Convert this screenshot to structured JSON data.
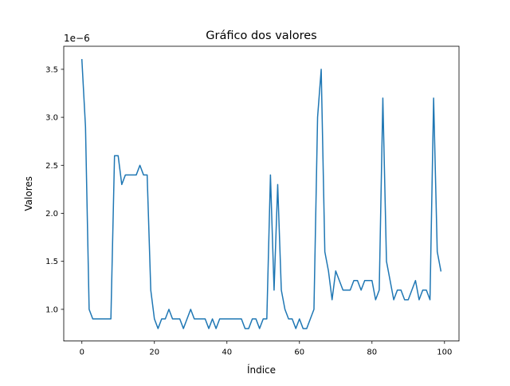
{
  "chart_data": {
    "type": "line",
    "title": "Gráfico dos valores",
    "xlabel": "Índice",
    "ylabel": "Valores",
    "y_offset_label": "1e−6",
    "xlim": [
      -5,
      104
    ],
    "ylim": [
      6.7e-07,
      3.74e-06
    ],
    "x_ticks": [
      0,
      20,
      40,
      60,
      80,
      100
    ],
    "y_ticks": [
      1e-06,
      1.5e-06,
      2e-06,
      2.5e-06,
      3e-06,
      3.5e-06
    ],
    "x_tick_labels": [
      "0",
      "20",
      "40",
      "60",
      "80",
      "100"
    ],
    "y_tick_labels": [
      "1.0",
      "1.5",
      "2.0",
      "2.5",
      "3.0",
      "3.5"
    ],
    "grid": false,
    "series": [
      {
        "color": "#1f77b4",
        "x": [
          0,
          1,
          2,
          3,
          4,
          5,
          6,
          7,
          8,
          9,
          10,
          11,
          12,
          13,
          14,
          15,
          16,
          17,
          18,
          19,
          20,
          21,
          22,
          23,
          24,
          25,
          26,
          27,
          28,
          29,
          30,
          31,
          32,
          33,
          34,
          35,
          36,
          37,
          38,
          39,
          40,
          41,
          42,
          43,
          44,
          45,
          46,
          47,
          48,
          49,
          50,
          51,
          52,
          53,
          54,
          55,
          56,
          57,
          58,
          59,
          60,
          61,
          62,
          63,
          64,
          65,
          66,
          67,
          68,
          69,
          70,
          71,
          72,
          73,
          74,
          75,
          76,
          77,
          78,
          79,
          80,
          81,
          82,
          83,
          84,
          85,
          86,
          87,
          88,
          89,
          90,
          91,
          92,
          93,
          94,
          95,
          96,
          97,
          98,
          99
        ],
        "values": [
          3.6e-06,
          2.9e-06,
          1e-06,
          9e-07,
          9e-07,
          9e-07,
          9e-07,
          9e-07,
          9e-07,
          2.6e-06,
          2.6e-06,
          2.3e-06,
          2.4e-06,
          2.4e-06,
          2.4e-06,
          2.4e-06,
          2.5e-06,
          2.4e-06,
          2.4e-06,
          1.2e-06,
          9e-07,
          8e-07,
          9e-07,
          9e-07,
          1e-06,
          9e-07,
          9e-07,
          9e-07,
          8e-07,
          9e-07,
          1e-06,
          9e-07,
          9e-07,
          9e-07,
          9e-07,
          8e-07,
          9e-07,
          8e-07,
          9e-07,
          9e-07,
          9e-07,
          9e-07,
          9e-07,
          9e-07,
          9e-07,
          8e-07,
          8e-07,
          9e-07,
          9e-07,
          8e-07,
          9e-07,
          9e-07,
          2.4e-06,
          1.2e-06,
          2.3e-06,
          1.2e-06,
          1e-06,
          9e-07,
          9e-07,
          8e-07,
          9e-07,
          8e-07,
          8e-07,
          9e-07,
          1e-06,
          3e-06,
          3.5e-06,
          1.6e-06,
          1.4e-06,
          1.1e-06,
          1.4e-06,
          1.3e-06,
          1.2e-06,
          1.2e-06,
          1.2e-06,
          1.3e-06,
          1.3e-06,
          1.2e-06,
          1.3e-06,
          1.3e-06,
          1.3e-06,
          1.1e-06,
          1.2e-06,
          3.2e-06,
          1.5e-06,
          1.3e-06,
          1.1e-06,
          1.2e-06,
          1.2e-06,
          1.1e-06,
          1.1e-06,
          1.2e-06,
          1.3e-06,
          1.1e-06,
          1.2e-06,
          1.2e-06,
          1.1e-06,
          3.2e-06,
          1.6e-06,
          1.4e-06
        ]
      }
    ]
  }
}
